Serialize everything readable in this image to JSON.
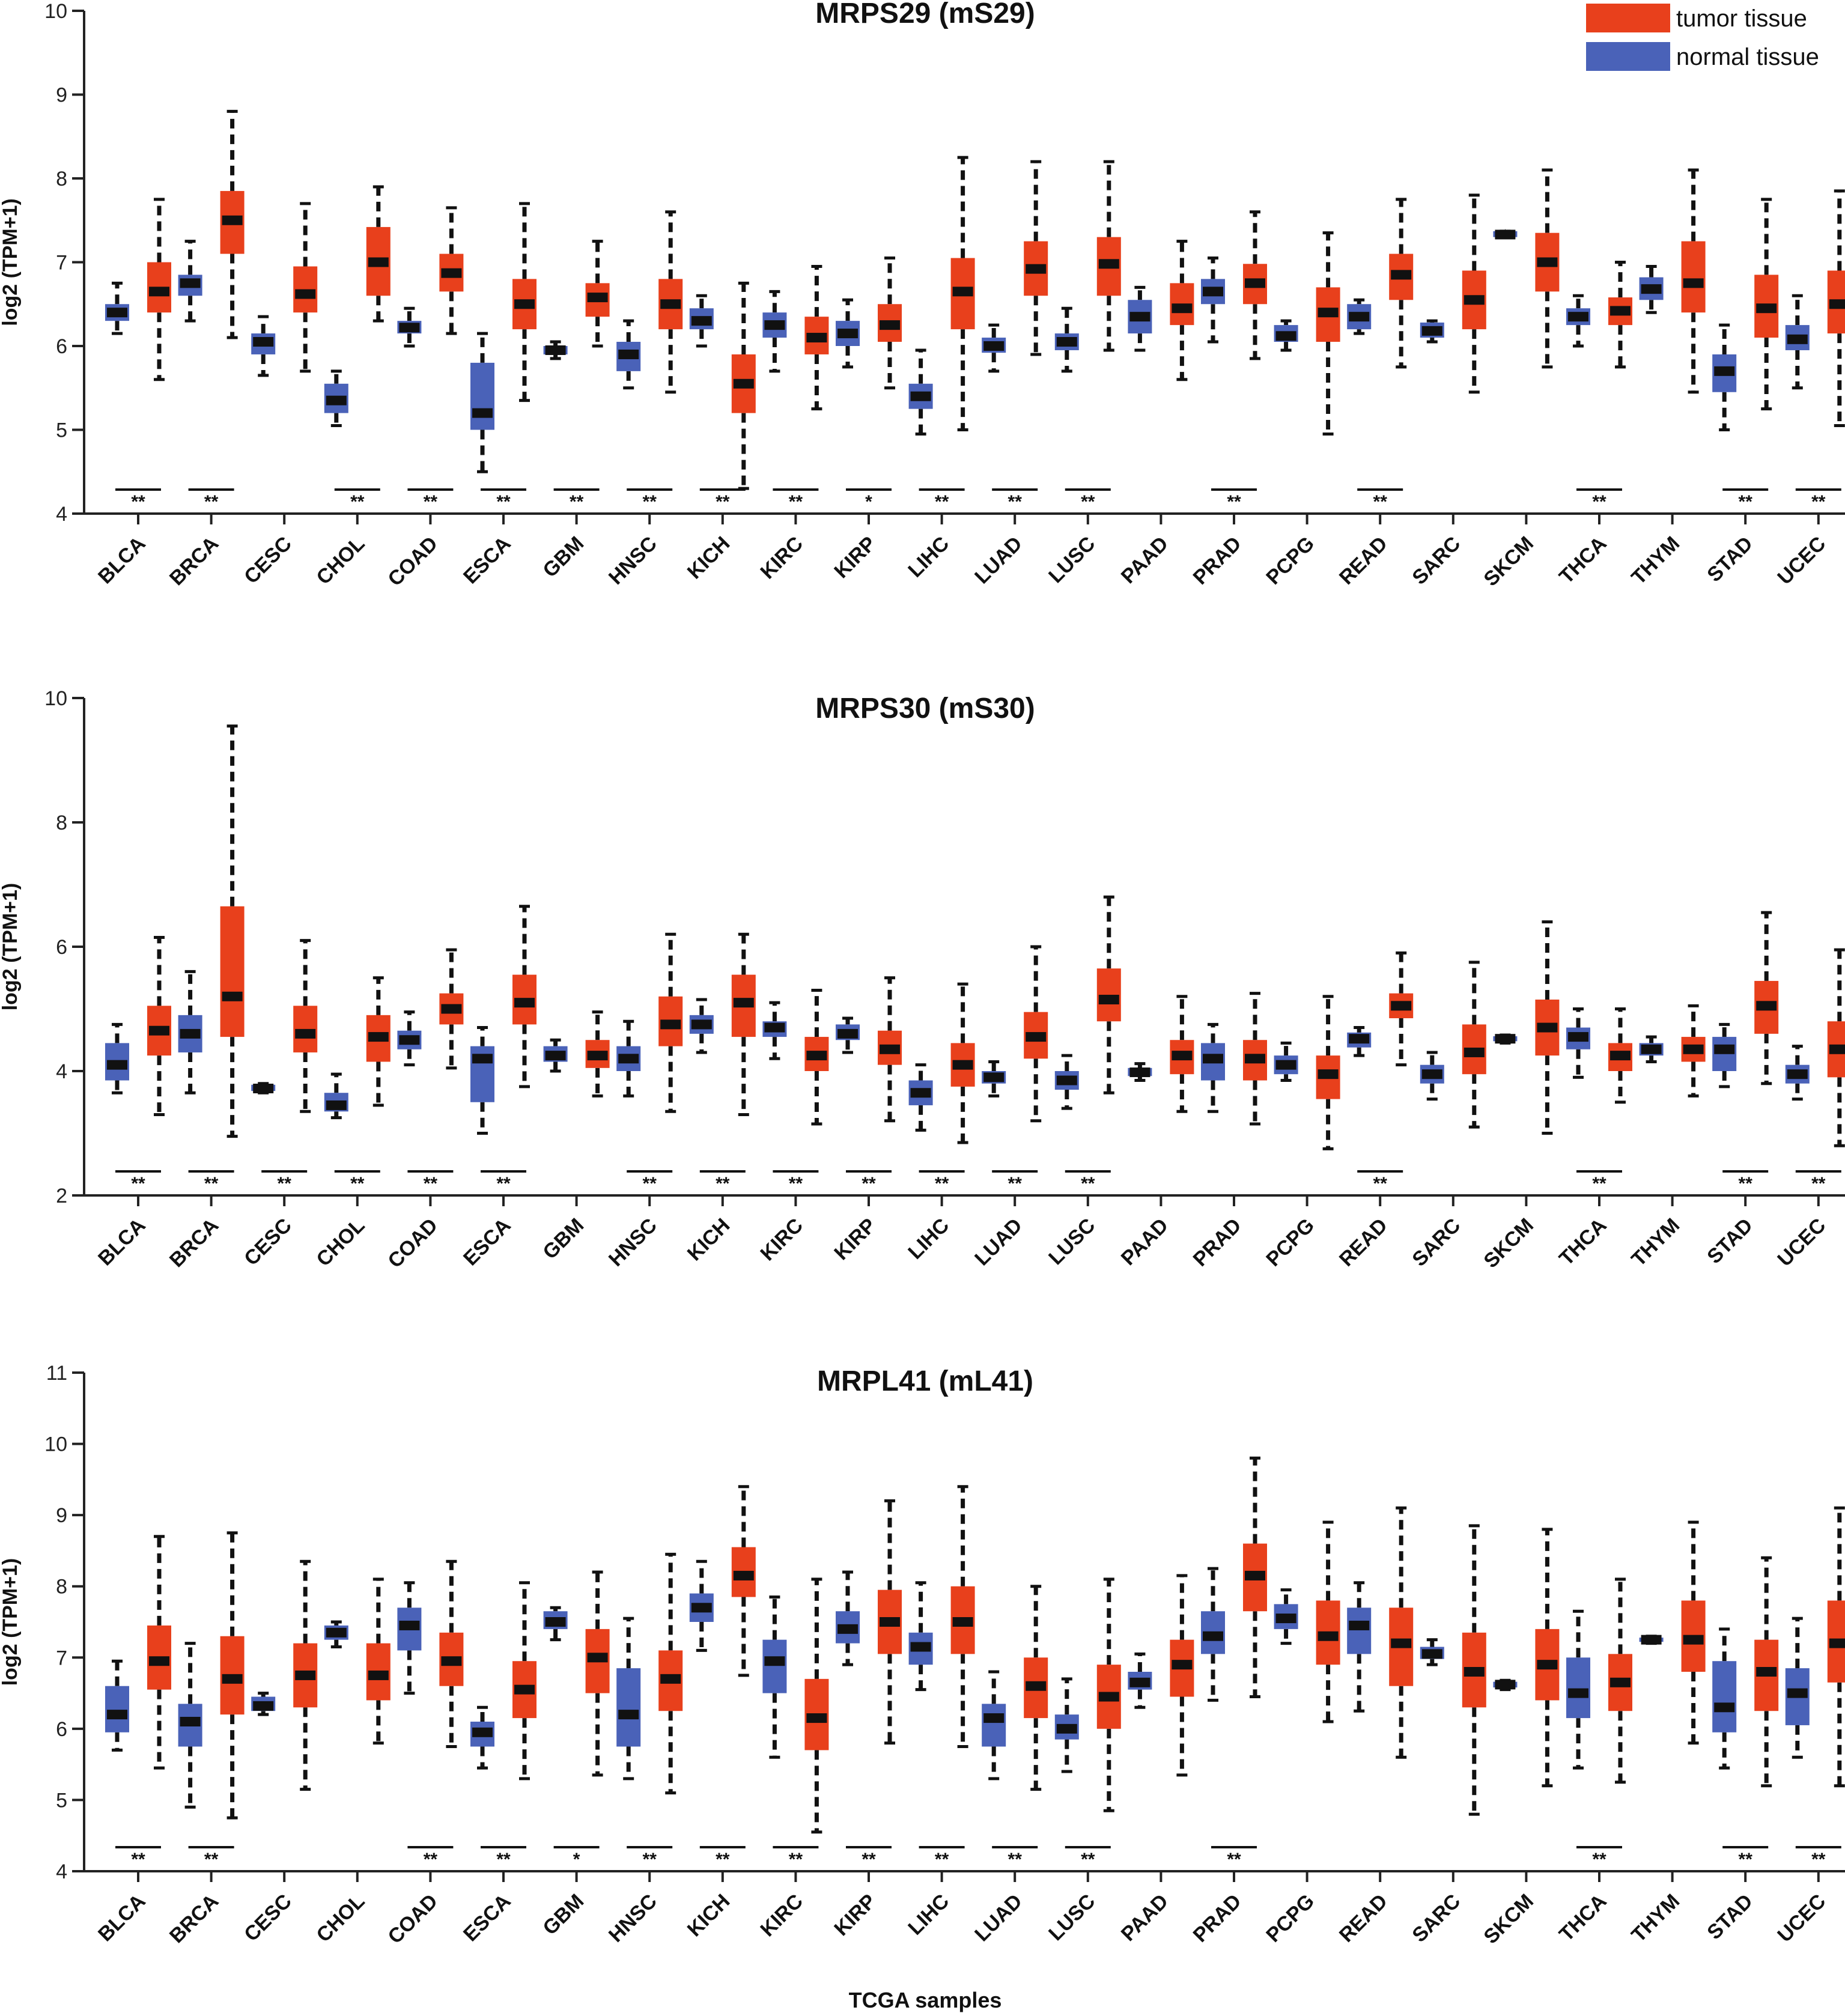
{
  "legend": {
    "tumor_label": "tumor tissue",
    "normal_label": "normal tissue",
    "tumor_color": "#e8401c",
    "normal_color": "#4a62b8"
  },
  "xlabel": "TCGA samples",
  "chart_data": [
    {
      "type": "boxplot",
      "title": "MRPS29 (mS29)",
      "ylabel": "log2 (TPM+1)",
      "ylim": [
        4,
        10
      ],
      "yticks": [
        4,
        5,
        6,
        7,
        8,
        9,
        10
      ],
      "categories": [
        "BLCA",
        "BRCA",
        "CESC",
        "CHOL",
        "COAD",
        "ESCA",
        "GBM",
        "HNSC",
        "KICH",
        "KIRC",
        "KIRP",
        "LIHC",
        "LUAD",
        "LUSC",
        "PAAD",
        "PRAD",
        "PCPG",
        "READ",
        "SARC",
        "SKCM",
        "THCA",
        "THYM",
        "STAD",
        "UCEC"
      ],
      "significance": [
        "**",
        "**",
        "",
        "**",
        "**",
        "**",
        "**",
        "**",
        "**",
        "**",
        "*",
        "**",
        "**",
        "**",
        "",
        "**",
        "",
        "**",
        "",
        "",
        "**",
        "",
        "**",
        "**"
      ],
      "normal": [
        [
          6.15,
          6.3,
          6.4,
          6.5,
          6.75
        ],
        [
          6.3,
          6.6,
          6.75,
          6.85,
          7.25
        ],
        [
          5.65,
          5.9,
          6.05,
          6.15,
          6.35
        ],
        [
          5.05,
          5.2,
          5.35,
          5.55,
          5.7
        ],
        [
          6.0,
          6.15,
          6.22,
          6.3,
          6.45
        ],
        [
          4.5,
          5.0,
          5.2,
          5.8,
          6.15
        ],
        [
          5.85,
          5.9,
          5.95,
          6.0,
          6.05
        ],
        [
          5.5,
          5.7,
          5.9,
          6.05,
          6.3
        ],
        [
          6.0,
          6.2,
          6.3,
          6.45,
          6.6
        ],
        [
          5.7,
          6.1,
          6.25,
          6.4,
          6.65
        ],
        [
          5.75,
          6.0,
          6.15,
          6.3,
          6.55
        ],
        [
          4.95,
          5.25,
          5.4,
          5.55,
          5.95
        ],
        [
          5.7,
          5.92,
          6.0,
          6.1,
          6.25
        ],
        [
          5.7,
          5.95,
          6.05,
          6.15,
          6.45
        ],
        [
          5.95,
          6.15,
          6.35,
          6.55,
          6.7
        ],
        [
          6.05,
          6.5,
          6.65,
          6.8,
          7.05
        ],
        [
          5.95,
          6.05,
          6.12,
          6.25,
          6.3
        ],
        [
          6.15,
          6.2,
          6.35,
          6.5,
          6.55
        ],
        [
          6.05,
          6.1,
          6.18,
          6.28,
          6.3
        ],
        [
          7.3,
          7.3,
          7.33,
          7.37,
          7.37
        ],
        [
          6.0,
          6.25,
          6.35,
          6.45,
          6.6
        ],
        [
          6.4,
          6.55,
          6.68,
          6.82,
          6.95
        ],
        [
          5.0,
          5.45,
          5.7,
          5.9,
          6.25
        ],
        [
          5.5,
          5.95,
          6.08,
          6.25,
          6.6
        ]
      ],
      "tumor": [
        [
          5.6,
          6.4,
          6.65,
          7.0,
          7.75
        ],
        [
          6.1,
          7.1,
          7.5,
          7.85,
          8.8
        ],
        [
          5.7,
          6.4,
          6.62,
          6.95,
          7.7
        ],
        [
          6.3,
          6.6,
          7.0,
          7.42,
          7.9
        ],
        [
          6.15,
          6.65,
          6.87,
          7.1,
          7.65
        ],
        [
          5.35,
          6.2,
          6.5,
          6.8,
          7.7
        ],
        [
          6.0,
          6.35,
          6.58,
          6.75,
          7.25
        ],
        [
          5.45,
          6.2,
          6.5,
          6.8,
          7.6
        ],
        [
          4.3,
          5.2,
          5.55,
          5.9,
          6.75
        ],
        [
          5.25,
          5.9,
          6.1,
          6.35,
          6.95
        ],
        [
          5.5,
          6.05,
          6.25,
          6.5,
          7.05
        ],
        [
          5.0,
          6.2,
          6.65,
          7.05,
          8.25
        ],
        [
          5.9,
          6.6,
          6.92,
          7.25,
          8.2
        ],
        [
          5.95,
          6.6,
          6.98,
          7.3,
          8.2
        ],
        [
          5.6,
          6.25,
          6.45,
          6.75,
          7.25
        ],
        [
          5.85,
          6.5,
          6.75,
          6.98,
          7.6
        ],
        [
          4.95,
          6.05,
          6.4,
          6.7,
          7.35
        ],
        [
          5.75,
          6.55,
          6.85,
          7.1,
          7.75
        ],
        [
          5.45,
          6.2,
          6.55,
          6.9,
          7.8
        ],
        [
          5.75,
          6.65,
          7.0,
          7.35,
          8.1
        ],
        [
          5.75,
          6.25,
          6.42,
          6.58,
          7.0
        ],
        [
          5.45,
          6.4,
          6.75,
          7.25,
          8.1
        ],
        [
          5.25,
          6.1,
          6.45,
          6.85,
          7.75
        ],
        [
          5.05,
          6.15,
          6.5,
          6.9,
          7.85
        ]
      ]
    },
    {
      "type": "boxplot",
      "title": "MRPS30  (mS30)",
      "ylabel": "log2 (TPM+1)",
      "ylim": [
        2,
        10
      ],
      "yticks": [
        2,
        4,
        6,
        8,
        10
      ],
      "categories": [
        "BLCA",
        "BRCA",
        "CESC",
        "CHOL",
        "COAD",
        "ESCA",
        "GBM",
        "HNSC",
        "KICH",
        "KIRC",
        "KIRP",
        "LIHC",
        "LUAD",
        "LUSC",
        "PAAD",
        "PRAD",
        "PCPG",
        "READ",
        "SARC",
        "SKCM",
        "THCA",
        "THYM",
        "STAD",
        "UCEC"
      ],
      "significance": [
        "**",
        "**",
        "**",
        "**",
        "**",
        "**",
        "",
        "**",
        "**",
        "**",
        "**",
        "**",
        "**",
        "**",
        "",
        "",
        "",
        "**",
        "",
        "",
        "**",
        "",
        "**",
        "**"
      ],
      "normal": [
        [
          3.65,
          3.85,
          4.1,
          4.45,
          4.75
        ],
        [
          3.65,
          4.3,
          4.6,
          4.9,
          5.6
        ],
        [
          3.65,
          3.68,
          3.72,
          3.78,
          3.8
        ],
        [
          3.25,
          3.35,
          3.45,
          3.65,
          3.95
        ],
        [
          4.1,
          4.35,
          4.5,
          4.65,
          4.95
        ],
        [
          3.0,
          3.5,
          4.2,
          4.4,
          4.7
        ],
        [
          4.0,
          4.15,
          4.25,
          4.4,
          4.5
        ],
        [
          3.6,
          4.0,
          4.2,
          4.4,
          4.8
        ],
        [
          4.3,
          4.6,
          4.75,
          4.9,
          5.15
        ],
        [
          4.2,
          4.55,
          4.7,
          4.8,
          5.1
        ],
        [
          4.3,
          4.5,
          4.6,
          4.75,
          4.85
        ],
        [
          3.05,
          3.45,
          3.65,
          3.85,
          4.1
        ],
        [
          3.6,
          3.8,
          3.9,
          4.0,
          4.15
        ],
        [
          3.4,
          3.7,
          3.85,
          4.0,
          4.25
        ],
        [
          3.85,
          3.92,
          3.98,
          4.05,
          4.12
        ],
        [
          3.35,
          3.85,
          4.2,
          4.45,
          4.75
        ],
        [
          3.85,
          3.95,
          4.1,
          4.25,
          4.45
        ],
        [
          4.25,
          4.38,
          4.52,
          4.62,
          4.7
        ],
        [
          3.55,
          3.8,
          3.95,
          4.1,
          4.3
        ],
        [
          4.45,
          4.48,
          4.52,
          4.56,
          4.58
        ],
        [
          3.9,
          4.35,
          4.55,
          4.7,
          5.0
        ],
        [
          4.15,
          4.25,
          4.35,
          4.45,
          4.55
        ],
        [
          3.75,
          4.0,
          4.35,
          4.55,
          4.75
        ],
        [
          3.55,
          3.8,
          3.95,
          4.1,
          4.4
        ]
      ],
      "tumor": [
        [
          3.3,
          4.25,
          4.65,
          5.05,
          6.15
        ],
        [
          2.95,
          4.55,
          5.2,
          6.65,
          9.55
        ],
        [
          3.35,
          4.3,
          4.6,
          5.05,
          6.1
        ],
        [
          3.45,
          4.15,
          4.55,
          4.9,
          5.5
        ],
        [
          4.05,
          4.75,
          5.0,
          5.25,
          5.95
        ],
        [
          3.75,
          4.75,
          5.1,
          5.55,
          6.65
        ],
        [
          3.6,
          4.05,
          4.25,
          4.5,
          4.95
        ],
        [
          3.35,
          4.4,
          4.75,
          5.2,
          6.2
        ],
        [
          3.3,
          4.55,
          5.1,
          5.55,
          6.2
        ],
        [
          3.15,
          4.0,
          4.25,
          4.55,
          5.3
        ],
        [
          3.2,
          4.1,
          4.35,
          4.65,
          5.5
        ],
        [
          2.85,
          3.75,
          4.1,
          4.45,
          5.4
        ],
        [
          3.2,
          4.2,
          4.55,
          4.95,
          6.0
        ],
        [
          3.65,
          4.8,
          5.15,
          5.65,
          6.8
        ],
        [
          3.35,
          3.95,
          4.25,
          4.5,
          5.2
        ],
        [
          3.15,
          3.85,
          4.2,
          4.5,
          5.25
        ],
        [
          2.75,
          3.55,
          3.95,
          4.25,
          5.2
        ],
        [
          4.1,
          4.85,
          5.05,
          5.25,
          5.9
        ],
        [
          3.1,
          3.95,
          4.3,
          4.75,
          5.75
        ],
        [
          3.0,
          4.25,
          4.7,
          5.15,
          6.4
        ],
        [
          3.5,
          4.0,
          4.25,
          4.45,
          5.0
        ],
        [
          3.6,
          4.15,
          4.35,
          4.55,
          5.05
        ],
        [
          3.8,
          4.6,
          5.05,
          5.45,
          6.55
        ],
        [
          2.8,
          3.9,
          4.35,
          4.8,
          5.95
        ]
      ]
    },
    {
      "type": "boxplot",
      "title": "MRPL41  (mL41)",
      "ylabel": "log2 (TPM+1)",
      "ylim": [
        4,
        11
      ],
      "yticks": [
        4,
        5,
        6,
        7,
        8,
        9,
        10,
        11
      ],
      "categories": [
        "BLCA",
        "BRCA",
        "CESC",
        "CHOL",
        "COAD",
        "ESCA",
        "GBM",
        "HNSC",
        "KICH",
        "KIRC",
        "KIRP",
        "LIHC",
        "LUAD",
        "LUSC",
        "PAAD",
        "PRAD",
        "PCPG",
        "READ",
        "SARC",
        "SKCM",
        "THCA",
        "THYM",
        "STAD",
        "UCEC"
      ],
      "significance": [
        "**",
        "**",
        "",
        "",
        "**",
        "**",
        "*",
        "**",
        "**",
        "**",
        "**",
        "**",
        "**",
        "**",
        "",
        "**",
        "",
        "",
        "",
        "",
        "**",
        "",
        "**",
        "**"
      ],
      "normal": [
        [
          5.7,
          5.95,
          6.2,
          6.6,
          6.95
        ],
        [
          4.9,
          5.75,
          6.1,
          6.35,
          7.2
        ],
        [
          6.2,
          6.25,
          6.32,
          6.45,
          6.5
        ],
        [
          7.15,
          7.25,
          7.35,
          7.45,
          7.5
        ],
        [
          6.5,
          7.1,
          7.45,
          7.7,
          8.05
        ],
        [
          5.45,
          5.75,
          5.95,
          6.1,
          6.3
        ],
        [
          7.25,
          7.4,
          7.5,
          7.65,
          7.7
        ],
        [
          5.3,
          5.75,
          6.2,
          6.85,
          7.55
        ],
        [
          7.1,
          7.5,
          7.7,
          7.9,
          8.35
        ],
        [
          5.6,
          6.5,
          6.95,
          7.25,
          7.85
        ],
        [
          6.9,
          7.2,
          7.4,
          7.65,
          8.2
        ],
        [
          6.55,
          6.9,
          7.15,
          7.35,
          8.05
        ],
        [
          5.3,
          5.75,
          6.15,
          6.35,
          6.8
        ],
        [
          5.4,
          5.85,
          6.0,
          6.2,
          6.7
        ],
        [
          6.3,
          6.55,
          6.65,
          6.8,
          7.05
        ],
        [
          6.4,
          7.05,
          7.3,
          7.65,
          8.25
        ],
        [
          7.2,
          7.4,
          7.55,
          7.75,
          7.95
        ],
        [
          6.25,
          7.05,
          7.45,
          7.7,
          8.05
        ],
        [
          6.9,
          6.98,
          7.05,
          7.15,
          7.25
        ],
        [
          6.55,
          6.58,
          6.62,
          6.66,
          6.68
        ],
        [
          5.45,
          6.15,
          6.5,
          7.0,
          7.65
        ],
        [
          7.2,
          7.22,
          7.25,
          7.28,
          7.3
        ],
        [
          5.45,
          5.95,
          6.3,
          6.95,
          7.4
        ],
        [
          5.6,
          6.05,
          6.5,
          6.85,
          7.55
        ]
      ],
      "tumor": [
        [
          5.45,
          6.55,
          6.95,
          7.45,
          8.7
        ],
        [
          4.75,
          6.2,
          6.7,
          7.3,
          8.75
        ],
        [
          5.15,
          6.3,
          6.75,
          7.2,
          8.35
        ],
        [
          5.8,
          6.4,
          6.75,
          7.2,
          8.1
        ],
        [
          5.75,
          6.6,
          6.95,
          7.35,
          8.35
        ],
        [
          5.3,
          6.15,
          6.55,
          6.95,
          8.05
        ],
        [
          5.35,
          6.5,
          7.0,
          7.4,
          8.2
        ],
        [
          5.1,
          6.25,
          6.7,
          7.1,
          8.45
        ],
        [
          6.75,
          7.85,
          8.15,
          8.55,
          9.4
        ],
        [
          4.55,
          5.7,
          6.15,
          6.7,
          8.1
        ],
        [
          5.8,
          7.05,
          7.5,
          7.95,
          9.2
        ],
        [
          5.75,
          7.05,
          7.5,
          8.0,
          9.4
        ],
        [
          5.15,
          6.15,
          6.6,
          7.0,
          8.0
        ],
        [
          4.85,
          6.0,
          6.45,
          6.9,
          8.1
        ],
        [
          5.35,
          6.45,
          6.9,
          7.25,
          8.15
        ],
        [
          6.45,
          7.65,
          8.15,
          8.6,
          9.8
        ],
        [
          6.1,
          6.9,
          7.3,
          7.8,
          8.9
        ],
        [
          5.6,
          6.6,
          7.2,
          7.7,
          9.1
        ],
        [
          4.8,
          6.3,
          6.8,
          7.35,
          8.85
        ],
        [
          5.2,
          6.4,
          6.9,
          7.4,
          8.8
        ],
        [
          5.25,
          6.25,
          6.65,
          7.05,
          8.1
        ],
        [
          5.8,
          6.8,
          7.25,
          7.8,
          8.9
        ],
        [
          5.2,
          6.25,
          6.8,
          7.25,
          8.4
        ],
        [
          5.2,
          6.65,
          7.2,
          7.8,
          9.1
        ]
      ]
    }
  ]
}
